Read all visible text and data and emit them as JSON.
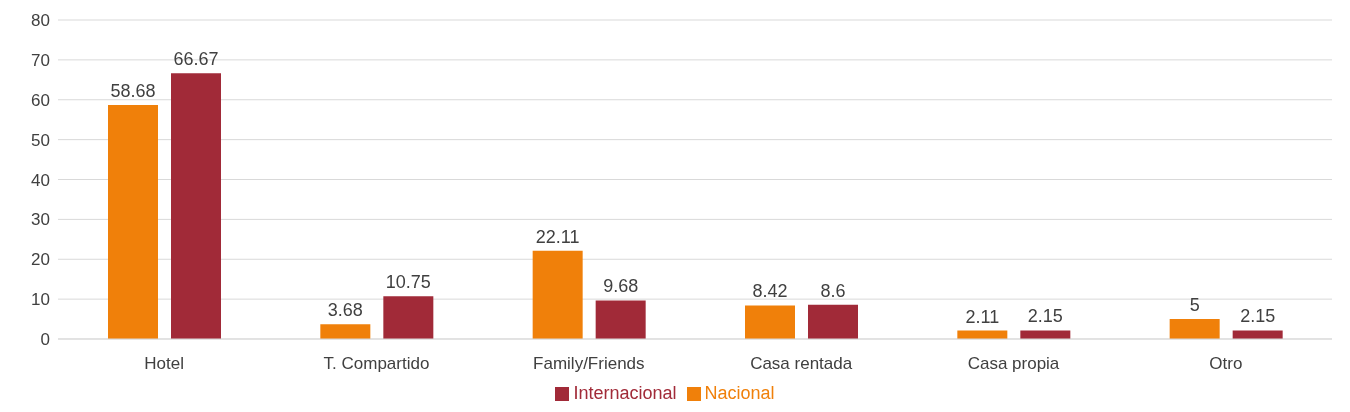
{
  "chart_data": {
    "type": "bar",
    "categories": [
      "Hotel",
      "T. Compartido",
      "Family/Friends",
      "Casa rentada",
      "Casa propia",
      "Otro"
    ],
    "series": [
      {
        "name": "Nacional",
        "color": "#f0800a",
        "values": [
          58.68,
          3.68,
          22.11,
          8.42,
          2.11,
          5
        ]
      },
      {
        "name": "Internacional",
        "color": "#a12a38",
        "values": [
          66.67,
          10.75,
          9.68,
          8.6,
          2.15,
          2.15
        ]
      }
    ],
    "ylim": [
      0,
      80
    ],
    "yticks": [
      0,
      10,
      20,
      30,
      40,
      50,
      60,
      70,
      80
    ],
    "grid": "y",
    "legend": "bottom",
    "data_labels": true
  }
}
